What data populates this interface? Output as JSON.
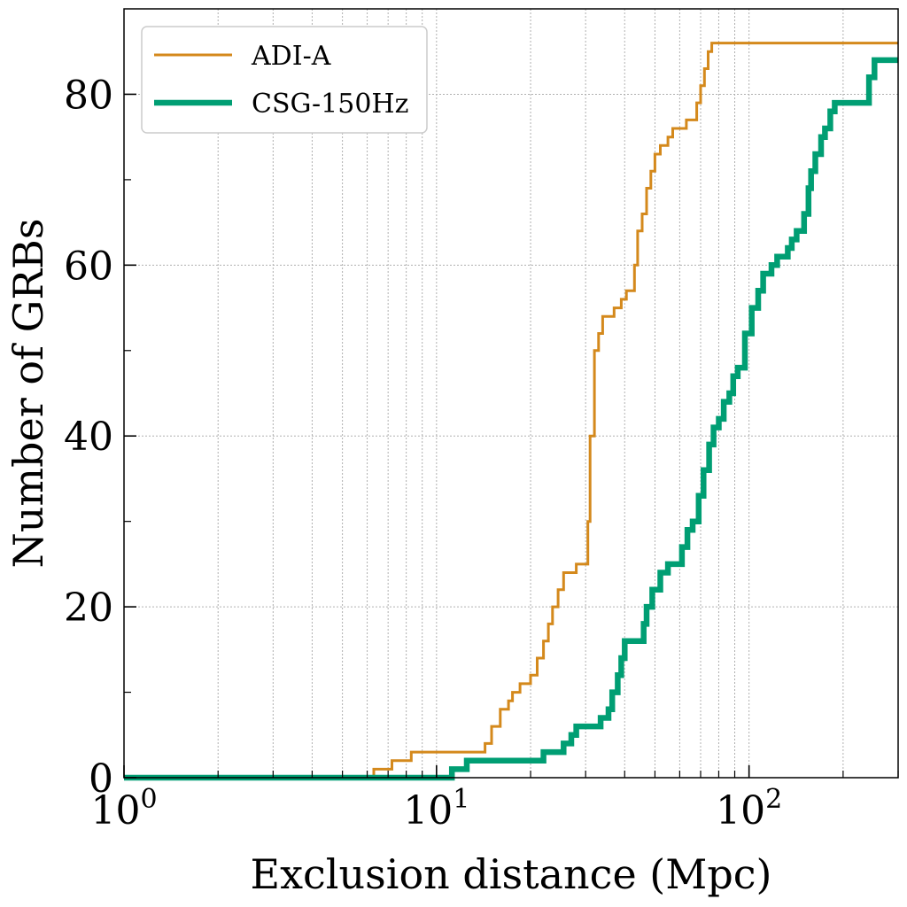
{
  "chart_data": {
    "type": "line",
    "title": "",
    "xlabel": "Exclusion distance (Mpc)",
    "ylabel": "Number of GRBs",
    "xscale": "log",
    "xlim": [
      1,
      300
    ],
    "ylim": [
      0,
      90
    ],
    "x_ticks": [
      {
        "value": 1,
        "base": "10",
        "exp": "0"
      },
      {
        "value": 10,
        "base": "10",
        "exp": "1"
      },
      {
        "value": 100,
        "base": "10",
        "exp": "2"
      }
    ],
    "y_ticks": [
      {
        "value": 0,
        "label": "0"
      },
      {
        "value": 20,
        "label": "20"
      },
      {
        "value": 40,
        "label": "40"
      },
      {
        "value": 60,
        "label": "60"
      },
      {
        "value": 80,
        "label": "80"
      }
    ],
    "grid": true,
    "legend_position": "top-left",
    "series": [
      {
        "name": "ADI-A",
        "color": "#d4891c",
        "line_width": 3,
        "points": [
          [
            1,
            0
          ],
          [
            6.3,
            0
          ],
          [
            6.3,
            1
          ],
          [
            7.2,
            1
          ],
          [
            7.2,
            2
          ],
          [
            8.3,
            2
          ],
          [
            8.3,
            3
          ],
          [
            14.3,
            3
          ],
          [
            14.3,
            4
          ],
          [
            15.0,
            4
          ],
          [
            15.0,
            6
          ],
          [
            16.0,
            6
          ],
          [
            16.0,
            8
          ],
          [
            17.0,
            8
          ],
          [
            17.0,
            9
          ],
          [
            17.5,
            9
          ],
          [
            17.5,
            10
          ],
          [
            18.5,
            10
          ],
          [
            18.5,
            11
          ],
          [
            20.0,
            11
          ],
          [
            20.0,
            12
          ],
          [
            21.0,
            12
          ],
          [
            21.0,
            14
          ],
          [
            22.0,
            14
          ],
          [
            22.0,
            16
          ],
          [
            22.8,
            16
          ],
          [
            22.8,
            18
          ],
          [
            23.5,
            18
          ],
          [
            23.5,
            20
          ],
          [
            24.5,
            20
          ],
          [
            24.5,
            22
          ],
          [
            25.5,
            22
          ],
          [
            25.5,
            24
          ],
          [
            28.0,
            24
          ],
          [
            28.0,
            25
          ],
          [
            30.5,
            25
          ],
          [
            30.5,
            30
          ],
          [
            31.0,
            30
          ],
          [
            31.0,
            40
          ],
          [
            32.0,
            40
          ],
          [
            32.0,
            50
          ],
          [
            33.0,
            50
          ],
          [
            33.0,
            52
          ],
          [
            34.0,
            52
          ],
          [
            34.0,
            54
          ],
          [
            37.0,
            54
          ],
          [
            37.0,
            55
          ],
          [
            39.0,
            55
          ],
          [
            39.0,
            56
          ],
          [
            40.5,
            56
          ],
          [
            40.5,
            57
          ],
          [
            43.0,
            57
          ],
          [
            43.0,
            60
          ],
          [
            44.0,
            60
          ],
          [
            44.0,
            64
          ],
          [
            45.5,
            64
          ],
          [
            45.5,
            66
          ],
          [
            47.0,
            66
          ],
          [
            47.0,
            69
          ],
          [
            48.5,
            69
          ],
          [
            48.5,
            71
          ],
          [
            50.0,
            71
          ],
          [
            50.0,
            73
          ],
          [
            52.0,
            73
          ],
          [
            52.0,
            74
          ],
          [
            55.0,
            74
          ],
          [
            55.0,
            75
          ],
          [
            57.0,
            75
          ],
          [
            57.0,
            76
          ],
          [
            63.0,
            76
          ],
          [
            63.0,
            77
          ],
          [
            68.0,
            77
          ],
          [
            68.0,
            79
          ],
          [
            70.0,
            79
          ],
          [
            70.0,
            81
          ],
          [
            72.0,
            81
          ],
          [
            72.0,
            83
          ],
          [
            74.0,
            83
          ],
          [
            74.0,
            85
          ],
          [
            76.0,
            85
          ],
          [
            76.0,
            86
          ],
          [
            300,
            86
          ]
        ]
      },
      {
        "name": "CSG-150Hz",
        "color": "#009e73",
        "line_width": 6.5,
        "points": [
          [
            1,
            0
          ],
          [
            11.2,
            0
          ],
          [
            11.2,
            1
          ],
          [
            12.5,
            1
          ],
          [
            12.5,
            2
          ],
          [
            22.0,
            2
          ],
          [
            22.0,
            3
          ],
          [
            25.5,
            3
          ],
          [
            25.5,
            4
          ],
          [
            27.0,
            4
          ],
          [
            27.0,
            5
          ],
          [
            28.0,
            5
          ],
          [
            28.0,
            6
          ],
          [
            33.5,
            6
          ],
          [
            33.5,
            7
          ],
          [
            35.5,
            7
          ],
          [
            35.5,
            8
          ],
          [
            36.5,
            8
          ],
          [
            36.5,
            10
          ],
          [
            38.0,
            10
          ],
          [
            38.0,
            12
          ],
          [
            39.0,
            12
          ],
          [
            39.0,
            14
          ],
          [
            40.0,
            14
          ],
          [
            40.0,
            16
          ],
          [
            46.0,
            16
          ],
          [
            46.0,
            18
          ],
          [
            47.0,
            18
          ],
          [
            47.0,
            20
          ],
          [
            49.0,
            20
          ],
          [
            49.0,
            22
          ],
          [
            52.0,
            22
          ],
          [
            52.0,
            24
          ],
          [
            55.0,
            24
          ],
          [
            55.0,
            25
          ],
          [
            61.0,
            25
          ],
          [
            61.0,
            27
          ],
          [
            63.5,
            27
          ],
          [
            63.5,
            29
          ],
          [
            66.0,
            29
          ],
          [
            66.0,
            30
          ],
          [
            69.0,
            30
          ],
          [
            69.0,
            33
          ],
          [
            71.5,
            33
          ],
          [
            71.5,
            36
          ],
          [
            74.5,
            36
          ],
          [
            74.5,
            39
          ],
          [
            77.0,
            39
          ],
          [
            77.0,
            41
          ],
          [
            80.0,
            41
          ],
          [
            80.0,
            42
          ],
          [
            83.0,
            42
          ],
          [
            83.0,
            44
          ],
          [
            86.5,
            44
          ],
          [
            86.5,
            45
          ],
          [
            89.0,
            45
          ],
          [
            89.0,
            47
          ],
          [
            92.0,
            47
          ],
          [
            92.0,
            48
          ],
          [
            97.0,
            48
          ],
          [
            97.0,
            52
          ],
          [
            102.0,
            52
          ],
          [
            102.0,
            55
          ],
          [
            107.0,
            55
          ],
          [
            107.0,
            57
          ],
          [
            111.0,
            57
          ],
          [
            111.0,
            59
          ],
          [
            118.0,
            59
          ],
          [
            118.0,
            60
          ],
          [
            123.0,
            60
          ],
          [
            123.0,
            61
          ],
          [
            133.0,
            61
          ],
          [
            133.0,
            62
          ],
          [
            137.0,
            62
          ],
          [
            137.0,
            63
          ],
          [
            142.0,
            63
          ],
          [
            142.0,
            64
          ],
          [
            150.0,
            64
          ],
          [
            150.0,
            66
          ],
          [
            155.0,
            66
          ],
          [
            155.0,
            69
          ],
          [
            158.0,
            69
          ],
          [
            158.0,
            71
          ],
          [
            163.0,
            71
          ],
          [
            163.0,
            73
          ],
          [
            170.0,
            73
          ],
          [
            170.0,
            75
          ],
          [
            175.0,
            75
          ],
          [
            175.0,
            76
          ],
          [
            182.0,
            76
          ],
          [
            182.0,
            78
          ],
          [
            188.0,
            78
          ],
          [
            188.0,
            79
          ],
          [
            242.0,
            79
          ],
          [
            242.0,
            82
          ],
          [
            252.0,
            82
          ],
          [
            252.0,
            84
          ],
          [
            300,
            84
          ]
        ]
      }
    ]
  }
}
